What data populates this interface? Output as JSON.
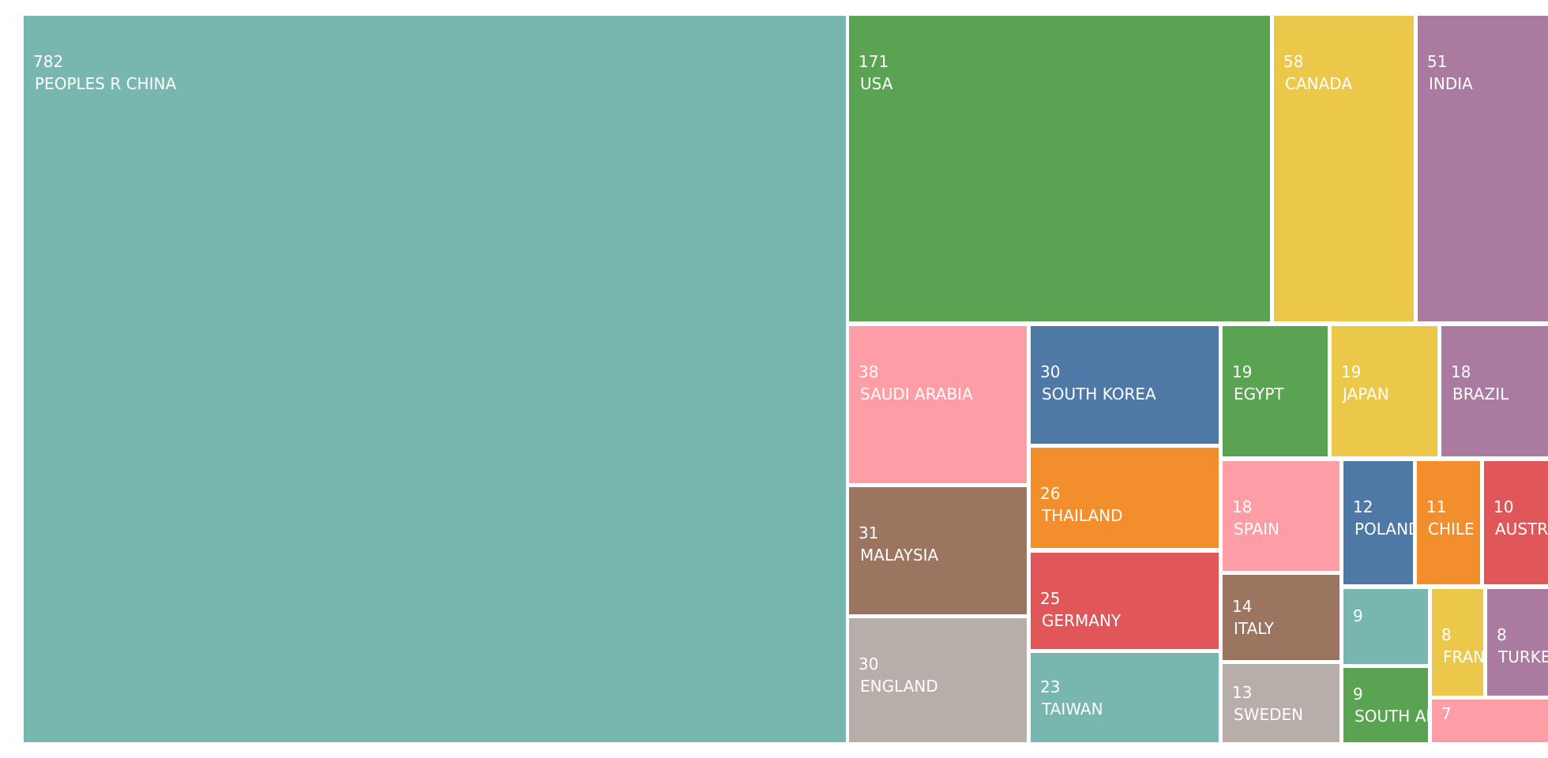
{
  "chart_data": {
    "type": "treemap",
    "title": "",
    "items": [
      {
        "label": "PEOPLES R CHINA",
        "value": 782,
        "color": "#78b6b0"
      },
      {
        "label": "USA",
        "value": 171,
        "color": "#5aa353"
      },
      {
        "label": "CANADA",
        "value": 58,
        "color": "#ebc84a"
      },
      {
        "label": "INDIA",
        "value": 51,
        "color": "#ab7aa0"
      },
      {
        "label": "SAUDI ARABIA",
        "value": 38,
        "color": "#ff9da6"
      },
      {
        "label": "MALAYSIA",
        "value": 31,
        "color": "#9b755f"
      },
      {
        "label": "ENGLAND",
        "value": 30,
        "color": "#b7aea9"
      },
      {
        "label": "SOUTH KOREA",
        "value": 30,
        "color": "#4e78a5"
      },
      {
        "label": "THAILAND",
        "value": 26,
        "color": "#f28e2b"
      },
      {
        "label": "GERMANY",
        "value": 25,
        "color": "#e15759"
      },
      {
        "label": "TAIWAN",
        "value": 23,
        "color": "#78b6b0"
      },
      {
        "label": "EGYPT",
        "value": 19,
        "color": "#5aa353"
      },
      {
        "label": "JAPAN",
        "value": 19,
        "color": "#ebc84a"
      },
      {
        "label": "BRAZIL",
        "value": 18,
        "color": "#ab7aa0"
      },
      {
        "label": "SPAIN",
        "value": 18,
        "color": "#ff9da6"
      },
      {
        "label": "ITALY",
        "value": 14,
        "color": "#9b755f"
      },
      {
        "label": "SWEDEN",
        "value": 13,
        "color": "#b7aea9"
      },
      {
        "label": "POLAND",
        "value": 12,
        "color": "#4e78a5"
      },
      {
        "label": "CHILE",
        "value": 11,
        "color": "#f28e2b"
      },
      {
        "label": "AUSTRALIA",
        "value": 10,
        "color": "#e15759"
      },
      {
        "label": "",
        "value": 9,
        "color": "#78b6b0"
      },
      {
        "label": "SOUTH AFRICA",
        "value": 9,
        "color": "#5aa353"
      },
      {
        "label": "FRANCE",
        "value": 8,
        "color": "#ebc84a"
      },
      {
        "label": "TURKEY",
        "value": 8,
        "color": "#ab7aa0"
      },
      {
        "label": "",
        "value": 7,
        "color": "#ff9da6"
      }
    ]
  }
}
